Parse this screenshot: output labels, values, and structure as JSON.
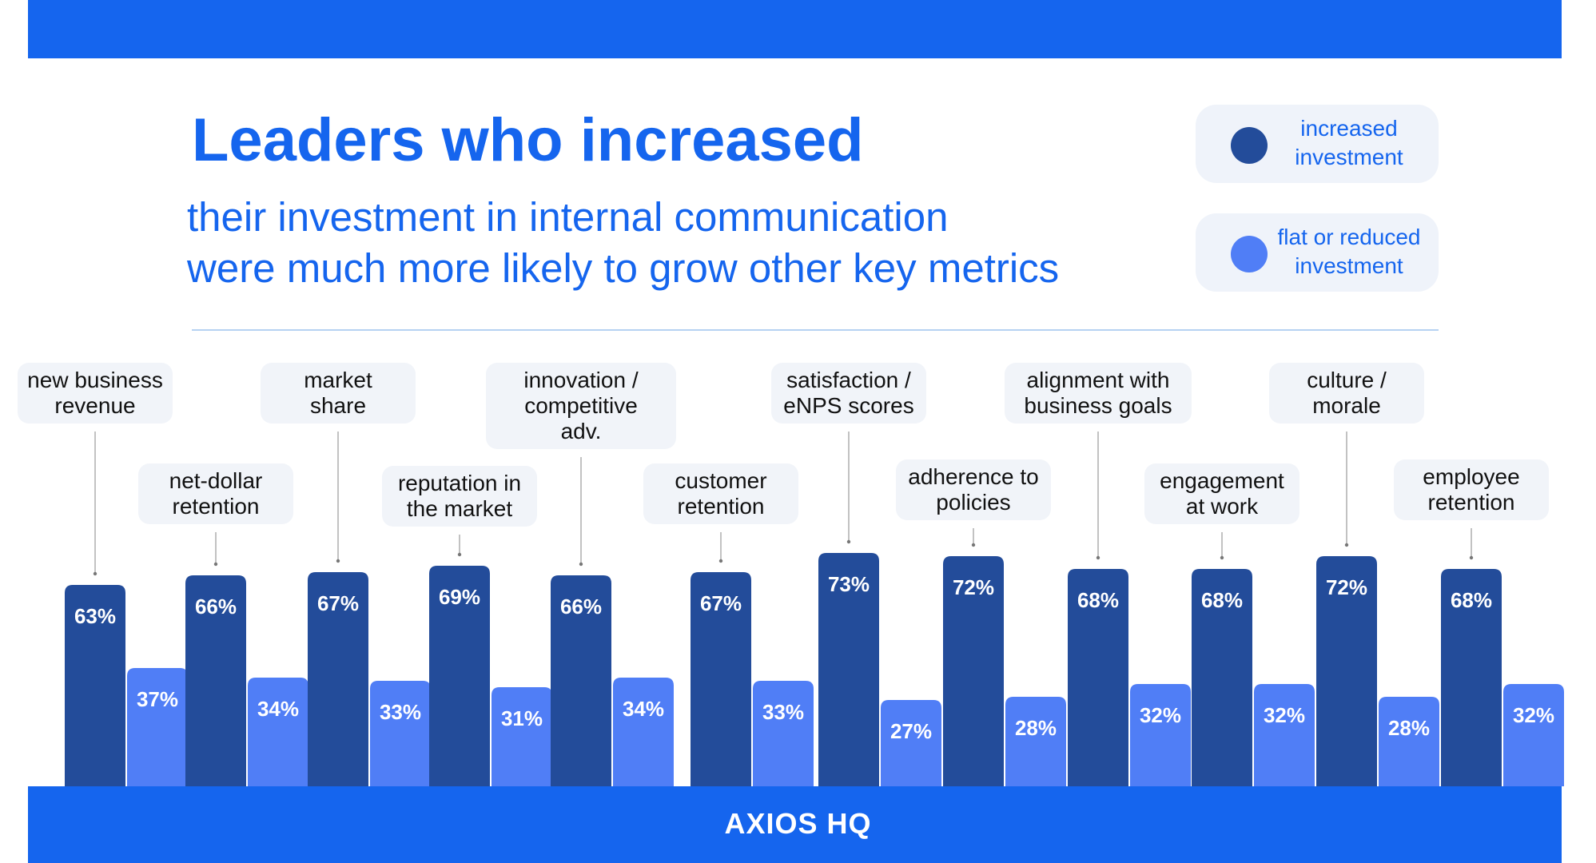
{
  "header": {
    "title": "Leaders who increased",
    "subtitle_lines": [
      "their investment in internal communication",
      "were much more likely to grow other key metrics"
    ]
  },
  "legend": {
    "items": [
      {
        "label_lines": [
          "increased",
          "investment"
        ],
        "color": "#234c9a"
      },
      {
        "label_lines": [
          "flat or reduced",
          "investment"
        ],
        "color": "#507ef6"
      }
    ]
  },
  "footer": {
    "brand": "AXIOS HQ"
  },
  "colors": {
    "accent": "#1565ee",
    "increased": "#234c9a",
    "flat": "#507ef6"
  },
  "chart_data": {
    "type": "bar",
    "title": "Leaders who increased",
    "categories": [
      "new business revenue",
      "net-dollar retention",
      "market share",
      "reputation in the market",
      "innovation / competitive adv.",
      "customer retention",
      "satisfaction / eNPS scores",
      "adherence to policies",
      "alignment with business goals",
      "engagement at work",
      "culture / morale",
      "employee retention"
    ],
    "category_label_lines": [
      [
        "new business",
        "revenue"
      ],
      [
        "net-dollar",
        "retention"
      ],
      [
        "market",
        "share"
      ],
      [
        "reputation in",
        "the market"
      ],
      [
        "innovation /",
        "competitive",
        "adv."
      ],
      [
        "customer",
        "retention"
      ],
      [
        "satisfaction /",
        "eNPS scores"
      ],
      [
        "adherence to",
        "policies"
      ],
      [
        "alignment with",
        "business goals"
      ],
      [
        "engagement",
        "at work"
      ],
      [
        "culture /",
        "morale"
      ],
      [
        "employee",
        "retention"
      ]
    ],
    "series": [
      {
        "name": "increased investment",
        "values": [
          63,
          66,
          67,
          69,
          66,
          67,
          73,
          72,
          68,
          68,
          72,
          68
        ]
      },
      {
        "name": "flat or reduced investment",
        "values": [
          37,
          34,
          33,
          31,
          34,
          33,
          27,
          28,
          32,
          32,
          28,
          32
        ]
      }
    ],
    "value_suffix": "%",
    "legend_position": "top-right",
    "grid": false
  }
}
